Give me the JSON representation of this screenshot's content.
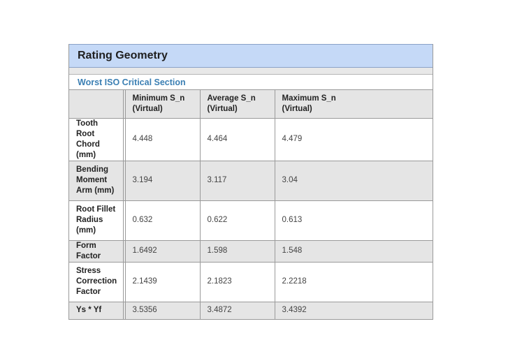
{
  "panel": {
    "title": "Rating Geometry",
    "section_title": "Worst ISO Critical Section"
  },
  "table": {
    "columns": [
      "",
      "",
      "Minimum S_n\n(Virtual)",
      "Average S_n\n(Virtual)",
      "Maximum S_n\n(Virtual)"
    ],
    "rows": [
      {
        "label": "Tooth Root\nChord (mm)",
        "min": "4.448",
        "avg": "4.464",
        "max": "4.479"
      },
      {
        "label": "Bending\nMoment\nArm (mm)",
        "min": "3.194",
        "avg": "3.117",
        "max": "3.04"
      },
      {
        "label": "Root Fillet\nRadius\n(mm)",
        "min": "0.632",
        "avg": "0.622",
        "max": "0.613"
      },
      {
        "label": "Form Factor",
        "min": "1.6492",
        "avg": "1.598",
        "max": "1.548"
      },
      {
        "label": "Stress\nCorrection\nFactor",
        "min": "2.1439",
        "avg": "2.1823",
        "max": "2.2218"
      },
      {
        "label": "Ys * Yf",
        "min": "3.5356",
        "avg": "3.4872",
        "max": "3.4392"
      }
    ]
  },
  "colors": {
    "header_bg": "#c5d9f7",
    "section_title": "#3b7fb3",
    "shaded_row": "#e5e5e5",
    "border": "#9a9a9a"
  }
}
